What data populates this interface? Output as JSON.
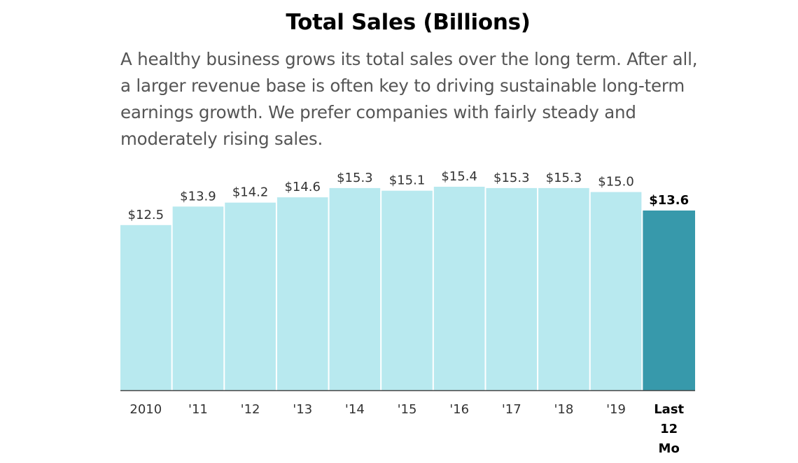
{
  "header": {
    "title": "Total Sales (Billions)",
    "description": "A healthy business grows its total sales over the long term. After all, a larger revenue base is often key to driving sustainable long-term earnings growth. We prefer companies with fairly steady and moderately rising sales."
  },
  "colors": {
    "bar": "#b8e9ef",
    "highlight_bar": "#3799ab",
    "axis": "#444444"
  },
  "chart_data": {
    "type": "bar",
    "title": "Total Sales (Billions)",
    "xlabel": "",
    "ylabel": "",
    "ylim": [
      0,
      15.4
    ],
    "grid": false,
    "legend": "none",
    "categories": [
      "2010",
      "'11",
      "'12",
      "'13",
      "'14",
      "'15",
      "'16",
      "'17",
      "'18",
      "'19",
      "Last 12 Mo"
    ],
    "tick_labels": [
      [
        "2010"
      ],
      [
        "'11"
      ],
      [
        "'12"
      ],
      [
        "'13"
      ],
      [
        "'14"
      ],
      [
        "'15"
      ],
      [
        "'16"
      ],
      [
        "'17"
      ],
      [
        "'18"
      ],
      [
        "'19"
      ],
      [
        "Last",
        "12",
        "Mo"
      ]
    ],
    "values": [
      12.5,
      13.9,
      14.2,
      14.6,
      15.3,
      15.1,
      15.4,
      15.3,
      15.3,
      15.0,
      13.6
    ],
    "value_labels": [
      "$12.5",
      "$13.9",
      "$14.2",
      "$14.6",
      "$15.3",
      "$15.1",
      "$15.4",
      "$15.3",
      "$15.3",
      "$15.0",
      "$13.6"
    ],
    "highlight_index": 10
  }
}
